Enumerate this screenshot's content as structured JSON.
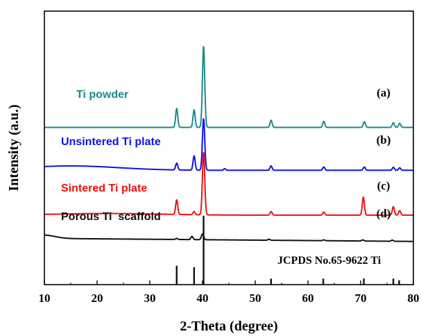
{
  "chart_data": {
    "type": "line",
    "title": "",
    "xlabel": "2-Theta (degree)",
    "ylabel": "Intensity (a.u.)",
    "xlim": [
      10,
      80
    ],
    "xticks": [
      10,
      20,
      30,
      40,
      50,
      60,
      70,
      80
    ],
    "ylim": [
      0,
      1
    ],
    "y_tick_labels_shown": false,
    "grid": false,
    "series": [
      {
        "name": "Ti powder",
        "marker": "(a)",
        "color": "#1a8a8a",
        "baseline": 0.575,
        "baseline_end": 0.575,
        "hump": {
          "center": 20,
          "width": 12,
          "height": 0.0
        },
        "peaks": [
          [
            35.1,
            0.069
          ],
          [
            38.4,
            0.064
          ],
          [
            40.2,
            0.295
          ],
          [
            53.0,
            0.026
          ],
          [
            63.0,
            0.022
          ],
          [
            70.7,
            0.021
          ],
          [
            76.2,
            0.017
          ],
          [
            77.4,
            0.015
          ]
        ]
      },
      {
        "name": "Unsintered Ti plate",
        "marker": "(b)",
        "color": "#1010ee",
        "baseline": 0.418,
        "baseline_end": 0.418,
        "hump": {
          "center": 15,
          "width": 9,
          "height": 0.016
        },
        "peaks": [
          [
            35.1,
            0.025
          ],
          [
            38.4,
            0.052
          ],
          [
            40.2,
            0.188
          ],
          [
            44.2,
            0.006
          ],
          [
            53.0,
            0.016
          ],
          [
            63.0,
            0.012
          ],
          [
            70.7,
            0.012
          ],
          [
            76.2,
            0.011
          ],
          [
            77.4,
            0.009
          ]
        ]
      },
      {
        "name": "Sintered Ti plate",
        "marker": "(c)",
        "color": "#ee1010",
        "baseline": 0.254,
        "baseline_end": 0.254,
        "hump": {
          "center": 22,
          "width": 10,
          "height": 0.006
        },
        "peaks": [
          [
            35.1,
            0.053
          ],
          [
            38.4,
            0.012
          ],
          [
            40.2,
            0.228
          ],
          [
            53.0,
            0.013
          ],
          [
            63.0,
            0.011
          ],
          [
            70.5,
            0.066
          ],
          [
            76.2,
            0.031
          ],
          [
            77.4,
            0.016
          ]
        ]
      },
      {
        "name": "Porous Ti  scaffold",
        "marker": "(d)",
        "color": "#111111",
        "baseline": 0.169,
        "baseline_end": 0.158,
        "hump": {
          "center": 10,
          "width": 2,
          "height": 0.012
        },
        "peaks": [
          [
            35.1,
            0.004
          ],
          [
            38.0,
            0.012
          ],
          [
            40.0,
            0.021
          ],
          [
            52.6,
            0.004
          ],
          [
            63.0,
            0.003
          ],
          [
            70.4,
            0.004
          ],
          [
            76.0,
            0.004
          ]
        ]
      }
    ],
    "reference": {
      "label": "JCPDS No.65-9622 Ti",
      "color": "#111111",
      "baseline": 0.0,
      "lines": [
        [
          35.1,
          0.069
        ],
        [
          38.4,
          0.064
        ],
        [
          40.2,
          0.252
        ],
        [
          53.0,
          0.022
        ],
        [
          62.9,
          0.022
        ],
        [
          70.6,
          0.022
        ],
        [
          76.2,
          0.022
        ],
        [
          77.3,
          0.016
        ]
      ]
    }
  }
}
